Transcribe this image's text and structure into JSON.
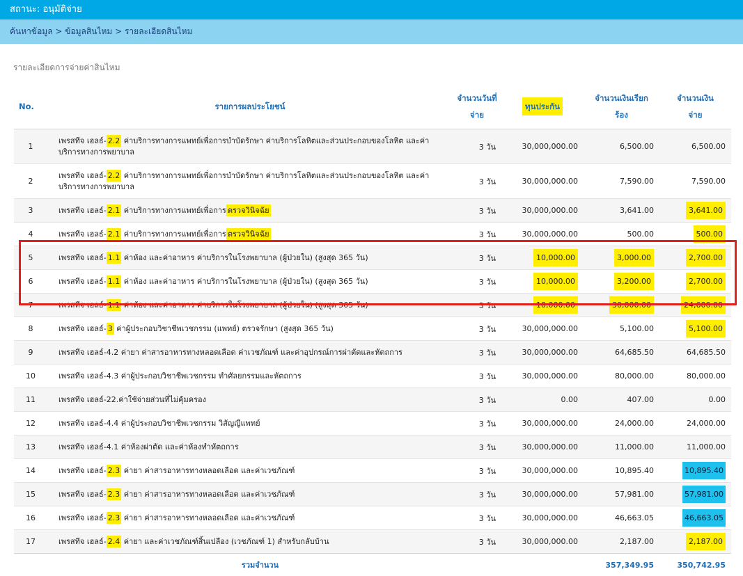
{
  "status": {
    "text": "สถานะ: อนุมัติจ่าย"
  },
  "breadcrumb": {
    "text": "ค้นหาข้อมูล > ข้อมูลสินไหม > รายละเอียดสินไหม"
  },
  "section_title": "รายละเอียดการจ่ายค่าสินไหม",
  "table": {
    "headers": {
      "no": "No.",
      "desc": "รายการผลประโยชน์",
      "days_1": "จำนวนวันที่",
      "days_2": "จ่าย",
      "sum": "ทุนประกัน",
      "claim_1": "จำนวนเงินเรียก",
      "claim_2": "ร้อง",
      "paid_1": "จำนวนเงิน",
      "paid_2": "จ่าย"
    },
    "rows": [
      {
        "no": "1",
        "pre": "เพรสทีจ เฮลธ์-",
        "code": "2.2",
        "desc": " ค่าบริการทางการแพทย์เพื่อการบำบัดรักษา ค่าบริการโลหิตและส่วนประกอบของโลหิต และค่าบริการทางการพยาบาล",
        "desc_hl": "",
        "days": "3 วัน",
        "sum": "30,000,000.00",
        "claim": "6,500.00",
        "paid": "6,500.00"
      },
      {
        "no": "2",
        "pre": "เพรสทีจ เฮลธ์-",
        "code": "2.2",
        "desc": " ค่าบริการทางการแพทย์เพื่อการบำบัดรักษา ค่าบริการโลหิตและส่วนประกอบของโลหิต และค่าบริการทางการพยาบาล",
        "desc_hl": "",
        "days": "3 วัน",
        "sum": "30,000,000.00",
        "claim": "7,590.00",
        "paid": "7,590.00"
      },
      {
        "no": "3",
        "pre": "เพรสทีจ เฮลธ์-",
        "code": "2.1",
        "desc": " ค่าบริการทางการแพทย์เพื่อการ",
        "desc_hl": "ตรวจวินิจฉัย",
        "days": "3 วัน",
        "sum": "30,000,000.00",
        "claim": "3,641.00",
        "paid": "3,641.00"
      },
      {
        "no": "4",
        "pre": "เพรสทีจ เฮลธ์-",
        "code": "2.1",
        "desc": " ค่าบริการทางการแพทย์เพื่อการ",
        "desc_hl": "ตรวจวินิจฉัย",
        "days": "3 วัน",
        "sum": "30,000,000.00",
        "claim": "500.00",
        "paid": "500.00"
      },
      {
        "no": "5",
        "pre": "เพรสทีจ เฮลธ์-",
        "code": "1.1",
        "desc": " ค่าห้อง และค่าอาหาร ค่าบริการในโรงพยาบาล (ผู้ป่วยใน) (สูงสุด 365 วัน)",
        "desc_hl": "",
        "days": "3 วัน",
        "sum": "10,000.00",
        "claim": "3,000.00",
        "paid": "2,700.00"
      },
      {
        "no": "6",
        "pre": "เพรสทีจ เฮลธ์-",
        "code": "1.1",
        "desc": " ค่าห้อง และค่าอาหาร ค่าบริการในโรงพยาบาล (ผู้ป่วยใน) (สูงสุด 365 วัน)",
        "desc_hl": "",
        "days": "3 วัน",
        "sum": "10,000.00",
        "claim": "3,200.00",
        "paid": "2,700.00"
      },
      {
        "no": "7",
        "pre": "เพรสทีจ เฮลธ์-",
        "code": "1.1",
        "desc": " ค่าห้อง และค่าอาหาร ค่าบริการในโรงพยาบาล (ผู้ป่วยใน) (สูงสุด 365 วัน)",
        "desc_hl": "",
        "days": "3 วัน",
        "sum": "10,000.00",
        "claim": "30,000.00",
        "paid": "24,600.00"
      },
      {
        "no": "8",
        "pre": "เพรสทีจ เฮลธ์-",
        "code": "3",
        "desc": " ค่าผู้ประกอบวิชาชีพเวชกรรม (แพทย์) ตรวจรักษา (สูงสุด 365 วัน)",
        "desc_hl": "",
        "days": "3 วัน",
        "sum": "30,000,000.00",
        "claim": "5,100.00",
        "paid": "5,100.00"
      },
      {
        "no": "9",
        "pre": "เพรสทีจ เฮลธ์-4.2",
        "code": "",
        "desc": " ค่ายา ค่าสารอาหารทางหลอดเลือด ค่าเวชภัณฑ์ และค่าอุปกรณ์การผ่าตัดและหัตถการ",
        "desc_hl": "",
        "days": "3 วัน",
        "sum": "30,000,000.00",
        "claim": "64,685.50",
        "paid": "64,685.50"
      },
      {
        "no": "10",
        "pre": "เพรสทีจ เฮลธ์-4.3",
        "code": "",
        "desc": " ค่าผู้ประกอบวิชาชีพเวชกรรม ทำศัลยกรรมและหัตถการ",
        "desc_hl": "",
        "days": "3 วัน",
        "sum": "30,000,000.00",
        "claim": "80,000.00",
        "paid": "80,000.00"
      },
      {
        "no": "11",
        "pre": "เพรสทีจ เฮลธ์-22.",
        "code": "",
        "desc": "ค่าใช้จ่ายส่วนที่ไม่คุ้มครอง",
        "desc_hl": "",
        "days": "3 วัน",
        "sum": "0.00",
        "claim": "407.00",
        "paid": "0.00"
      },
      {
        "no": "12",
        "pre": "เพรสทีจ เฮลธ์-4.4",
        "code": "",
        "desc": " ค่าผู้ประกอบวิชาชีพเวชกรรม วิสัญญีแพทย์",
        "desc_hl": "",
        "days": "3 วัน",
        "sum": "30,000,000.00",
        "claim": "24,000.00",
        "paid": "24,000.00"
      },
      {
        "no": "13",
        "pre": "เพรสทีจ เฮลธ์-4.1",
        "code": "",
        "desc": " ค่าห้องผ่าตัด และค่าห้องทำหัตถการ",
        "desc_hl": "",
        "days": "3 วัน",
        "sum": "30,000,000.00",
        "claim": "11,000.00",
        "paid": "11,000.00"
      },
      {
        "no": "14",
        "pre": "เพรสทีจ เฮลธ์-",
        "code": "2.3",
        "desc": " ค่ายา ค่าสารอาหารทางหลอดเลือด และค่าเวชภัณฑ์",
        "desc_hl": "",
        "days": "3 วัน",
        "sum": "30,000,000.00",
        "claim": "10,895.40",
        "paid": "10,895.40"
      },
      {
        "no": "15",
        "pre": "เพรสทีจ เฮลธ์-",
        "code": "2.3",
        "desc": " ค่ายา ค่าสารอาหารทางหลอดเลือด และค่าเวชภัณฑ์",
        "desc_hl": "",
        "days": "3 วัน",
        "sum": "30,000,000.00",
        "claim": "57,981.00",
        "paid": "57,981.00"
      },
      {
        "no": "16",
        "pre": "เพรสทีจ เฮลธ์-",
        "code": "2.3",
        "desc": " ค่ายา ค่าสารอาหารทางหลอดเลือด และค่าเวชภัณฑ์",
        "desc_hl": "",
        "days": "3 วัน",
        "sum": "30,000,000.00",
        "claim": "46,663.05",
        "paid": "46,663.05"
      },
      {
        "no": "17",
        "pre": "เพรสทีจ เฮลธ์-",
        "code": "2.4",
        "desc": " ค่ายา และค่าเวชภัณฑ์สิ้นเปลือง (เวชภัณฑ์ 1) สำหรับกลับบ้าน",
        "desc_hl": "",
        "days": "3 วัน",
        "sum": "30,000,000.00",
        "claim": "2,187.00",
        "paid": "2,187.00"
      }
    ],
    "total": {
      "label": "รวมจำนวน",
      "claim": "357,349.95",
      "paid": "350,742.95"
    }
  },
  "highlight_colors": {
    "yellow": "#ffee00",
    "blue": "#1ec0ee",
    "red_box": "#e0201c"
  }
}
